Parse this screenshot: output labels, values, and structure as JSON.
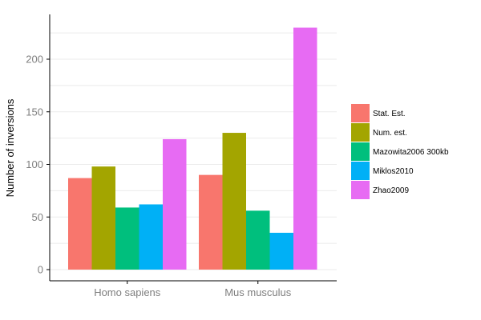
{
  "chart_data": {
    "type": "bar",
    "title": "",
    "xlabel": "",
    "ylabel": "Number of inversions",
    "categories": [
      "Homo sapiens",
      "Mus musculus"
    ],
    "series": [
      {
        "name": "Stat. Est.",
        "color": "#F8766D",
        "values": [
          87,
          90
        ]
      },
      {
        "name": "Num. est.",
        "color": "#A3A500",
        "values": [
          98,
          130
        ]
      },
      {
        "name": "Mazowita2006 300kb",
        "color": "#00BF7D",
        "values": [
          59,
          56
        ]
      },
      {
        "name": "Miklos2010",
        "color": "#00B0F6",
        "values": [
          62,
          35
        ]
      },
      {
        "name": "Zhao2009",
        "color": "#E76BF3",
        "values": [
          124,
          230
        ]
      }
    ],
    "ylim": [
      0,
      230
    ],
    "yticks": [
      0,
      50,
      100,
      150,
      200
    ],
    "grid": true,
    "legend_position": "right"
  }
}
